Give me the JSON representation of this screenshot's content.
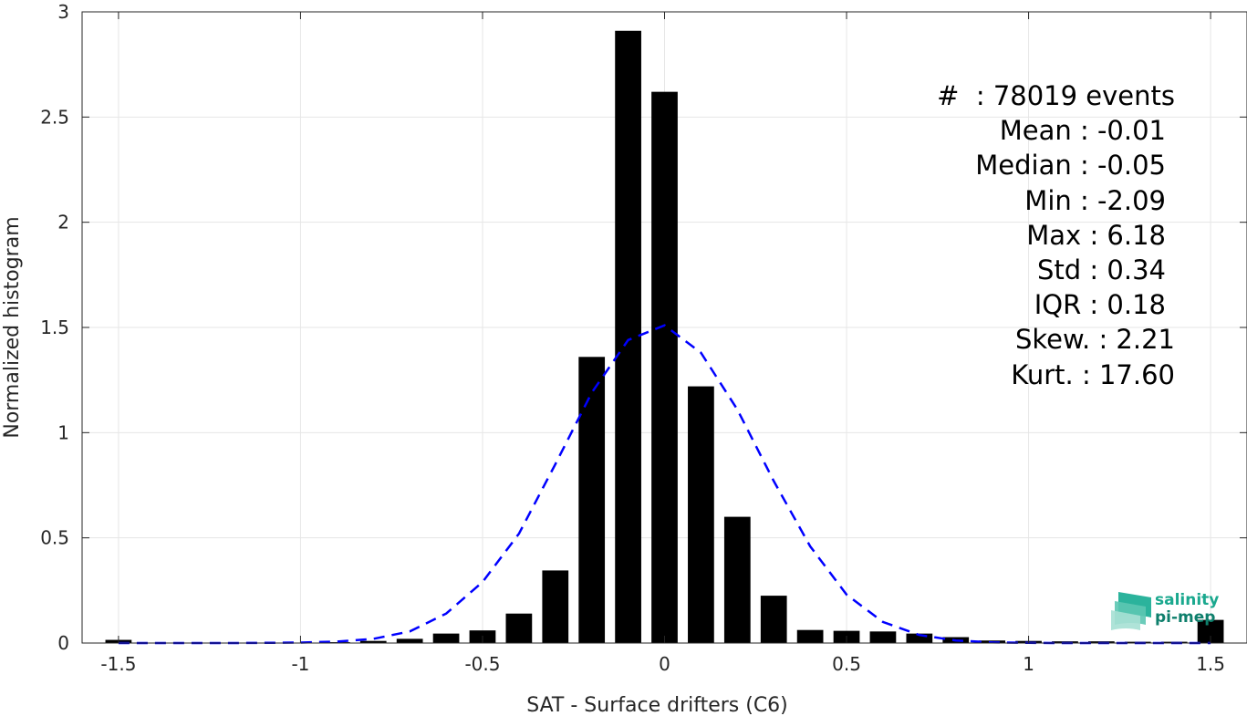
{
  "chart_data": {
    "type": "bar",
    "title": "",
    "xlabel": "SAT - Surface drifters (C6)",
    "ylabel": "Normalized histogram",
    "xlim": [
      -1.6,
      1.6
    ],
    "ylim": [
      0,
      3
    ],
    "grid": true,
    "x_ticks": [
      -1.5,
      -1,
      -0.5,
      0,
      0.5,
      1,
      1.5
    ],
    "x_tick_labels": [
      "-1.5",
      "-1",
      "-0.5",
      "0",
      "0.5",
      "1",
      "1.5"
    ],
    "y_ticks": [
      0,
      0.5,
      1,
      1.5,
      2,
      2.5,
      3
    ],
    "y_tick_labels": [
      "0",
      "0.5",
      "1",
      "1.5",
      "2",
      "2.5",
      "3"
    ],
    "bin_width": 0.1,
    "series": [
      {
        "type": "bar",
        "color": "#000000",
        "x": [
          -1.5,
          -1.4,
          -1.3,
          -1.2,
          -1.1,
          -1.0,
          -0.9,
          -0.8,
          -0.7,
          -0.6,
          -0.5,
          -0.4,
          -0.3,
          -0.2,
          -0.1,
          0.0,
          0.1,
          0.2,
          0.3,
          0.4,
          0.5,
          0.6,
          0.7,
          0.8,
          0.9,
          1.0,
          1.1,
          1.2,
          1.3,
          1.4,
          1.5
        ],
        "values": [
          0.015,
          0.001,
          0.001,
          0.001,
          0.002,
          0.002,
          0.004,
          0.01,
          0.02,
          0.045,
          0.06,
          0.14,
          0.345,
          1.36,
          2.91,
          2.62,
          1.22,
          0.6,
          0.225,
          0.062,
          0.058,
          0.055,
          0.045,
          0.028,
          0.012,
          0.01,
          0.008,
          0.008,
          0.006,
          0.006,
          0.11
        ]
      },
      {
        "type": "line",
        "style": "dashed",
        "color": "#0000ff",
        "x": [
          -1.5,
          -1.4,
          -1.3,
          -1.2,
          -1.1,
          -1.0,
          -0.9,
          -0.8,
          -0.7,
          -0.6,
          -0.5,
          -0.4,
          -0.3,
          -0.2,
          -0.1,
          0.0,
          0.1,
          0.2,
          0.3,
          0.4,
          0.5,
          0.6,
          0.7,
          0.8,
          0.9,
          1.0,
          1.1,
          1.2,
          1.3,
          1.4,
          1.5
        ],
        "values": [
          0.0,
          0.0,
          0.0,
          0.0,
          0.001,
          0.002,
          0.007,
          0.02,
          0.055,
          0.14,
          0.29,
          0.52,
          0.85,
          1.19,
          1.44,
          1.51,
          1.38,
          1.11,
          0.77,
          0.46,
          0.23,
          0.1,
          0.038,
          0.012,
          0.003,
          0.001,
          0.0,
          0.0,
          0.0,
          0.0,
          0.0
        ]
      }
    ]
  },
  "stats": {
    "events": "#  : 78019 events",
    "mean": "Mean : -0.01",
    "median": "Median : -0.05",
    "min": "Min : -2.09",
    "max": "Max : 6.18",
    "std": "Std : 0.34",
    "iqr": "IQR : 0.18",
    "skew": "Skew. : 2.21",
    "kurt": "Kurt. : 17.60"
  },
  "logo": {
    "line1": "salinity",
    "line2": "pi-mep",
    "colors": {
      "primary": "#1aa88e",
      "secondary": "#0e7f6c"
    }
  }
}
